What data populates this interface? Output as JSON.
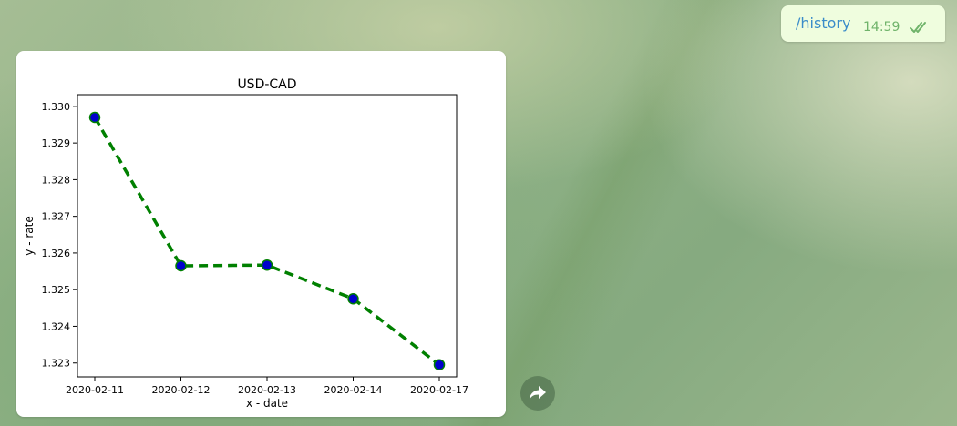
{
  "outgoing_message": {
    "text": "/history",
    "time": "14:59",
    "status_icon": "double-check-icon",
    "text_color": "#3a8cc9",
    "time_color": "#6fb36a"
  },
  "forward_button": {
    "icon": "forward-arrow-icon"
  },
  "chart_data": {
    "type": "line",
    "title": "USD-CAD",
    "xlabel": "x - date",
    "ylabel": "y - rate",
    "categories": [
      "2020-02-11",
      "2020-02-12",
      "2020-02-13",
      "2020-02-14",
      "2020-02-17"
    ],
    "values": [
      1.3297,
      1.32565,
      1.32567,
      1.32475,
      1.32295
    ],
    "ylim": [
      1.32262,
      1.33032
    ],
    "yticks": [
      "1.323",
      "1.324",
      "1.325",
      "1.326",
      "1.327",
      "1.328",
      "1.329",
      "1.330"
    ],
    "line_style": "dashed",
    "line_color": "#008000",
    "marker_color": "#0000cc",
    "grid": false
  }
}
